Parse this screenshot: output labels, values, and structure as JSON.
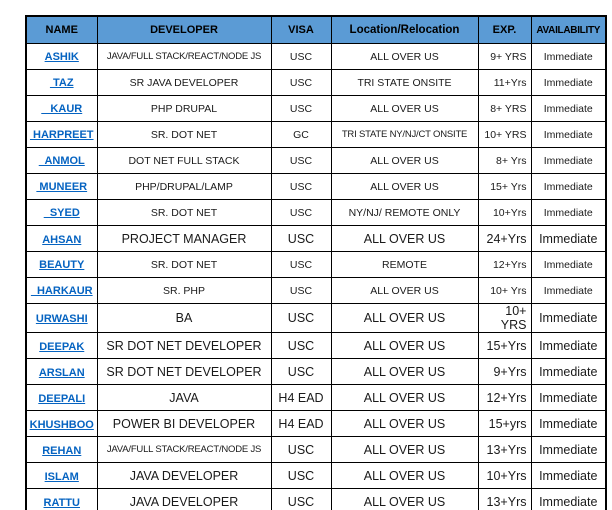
{
  "colors": {
    "header_bg": "#5B9BD5",
    "header_text": "#000000",
    "link": "#0563C1",
    "border": "#000000",
    "row_bg": "#FFFFFF"
  },
  "table": {
    "columns": [
      {
        "key": "name",
        "label": "NAME"
      },
      {
        "key": "developer",
        "label": "DEVELOPER"
      },
      {
        "key": "visa",
        "label": "VISA"
      },
      {
        "key": "location",
        "label": "Location/Relocation"
      },
      {
        "key": "exp",
        "label": "EXP."
      },
      {
        "key": "availability",
        "label": "AVAILABILITY"
      }
    ],
    "rows": [
      {
        "name": "ASHIK",
        "developer": "JAVA/FULL STACK/REACT/NODE JS",
        "visa": "USC",
        "location": "ALL OVER US",
        "exp": "9+ YRS",
        "availability": "Immediate",
        "large": false
      },
      {
        "name": " TAZ",
        "developer": "SR JAVA DEVELOPER",
        "visa": "USC",
        "location": "TRI STATE ONSITE",
        "exp": "11+Yrs",
        "availability": "Immediate",
        "large": false
      },
      {
        "name": "   KAUR",
        "developer": "PHP DRUPAL",
        "visa": "USC",
        "location": "ALL OVER US",
        "exp": "8+ YRS",
        "availability": "Immediate",
        "large": false
      },
      {
        "name": " HARPREET",
        "developer": "SR. DOT NET",
        "visa": "GC",
        "location": "TRI STATE NY/NJ/CT ONSITE",
        "exp": "10+ YRS",
        "availability": "Immediate",
        "large": false
      },
      {
        "name": "  ANMOL",
        "developer": "DOT NET FULL STACK",
        "visa": "USC",
        "location": "ALL OVER US",
        "exp": "8+ Yrs",
        "availability": "Immediate",
        "large": false
      },
      {
        "name": " MUNEER",
        "developer": "PHP/DRUPAL/LAMP",
        "visa": "USC",
        "location": "ALL OVER US",
        "exp": "15+ Yrs",
        "availability": "Immediate",
        "large": false
      },
      {
        "name": "  SYED",
        "developer": "SR. DOT NET",
        "visa": "USC",
        "location": "NY/NJ/ REMOTE ONLY",
        "exp": "10+Yrs",
        "availability": "Immediate",
        "large": false
      },
      {
        "name": "AHSAN",
        "developer": "PROJECT MANAGER",
        "visa": "USC",
        "location": "ALL OVER US",
        "exp": "24+Yrs",
        "availability": "Immediate",
        "large": true
      },
      {
        "name": "BEAUTY",
        "developer": "SR. DOT NET",
        "visa": "USC",
        "location": "REMOTE",
        "exp": "12+Yrs",
        "availability": "Immediate",
        "large": false
      },
      {
        "name": "  HARKAUR",
        "developer": "SR. PHP",
        "visa": "USC",
        "location": "ALL OVER US",
        "exp": "10+ Yrs",
        "availability": "Immediate",
        "large": false
      },
      {
        "name": "URWASHI",
        "developer": "BA",
        "visa": "USC",
        "location": "ALL OVER US",
        "exp": "10+ YRS",
        "availability": "Immediate",
        "large": true
      },
      {
        "name": "DEEPAK",
        "developer": "SR DOT NET DEVELOPER",
        "visa": "USC",
        "location": "ALL OVER US",
        "exp": "15+Yrs",
        "availability": "Immediate",
        "large": true
      },
      {
        "name": "ARSLAN",
        "developer": "SR DOT NET DEVELOPER",
        "visa": "USC",
        "location": "ALL OVER US",
        "exp": "9+Yrs",
        "availability": "Immediate",
        "large": true
      },
      {
        "name": "DEEPALI",
        "developer": "JAVA",
        "visa": "H4 EAD",
        "location": "ALL OVER US",
        "exp": "12+Yrs",
        "availability": "Immediate",
        "large": true
      },
      {
        "name": "KHUSHBOO",
        "developer": "POWER BI DEVELOPER",
        "visa": "H4 EAD",
        "location": "ALL OVER US",
        "exp": "15+yrs",
        "availability": "Immediate",
        "large": true
      },
      {
        "name": "REHAN",
        "developer": "JAVA/FULL STACK/REACT/NODE JS",
        "visa": "USC",
        "location": "ALL OVER US",
        "exp": "13+Yrs",
        "availability": "Immediate",
        "large": true
      },
      {
        "name": "ISLAM",
        "developer": "JAVA DEVELOPER",
        "visa": "USC",
        "location": "ALL OVER US",
        "exp": "10+Yrs",
        "availability": "Immediate",
        "large": true
      },
      {
        "name": "RATTU",
        "developer": "JAVA DEVELOPER",
        "visa": "USC",
        "location": "ALL OVER US",
        "exp": "13+Yrs",
        "availability": "Immediate",
        "large": true
      }
    ]
  }
}
